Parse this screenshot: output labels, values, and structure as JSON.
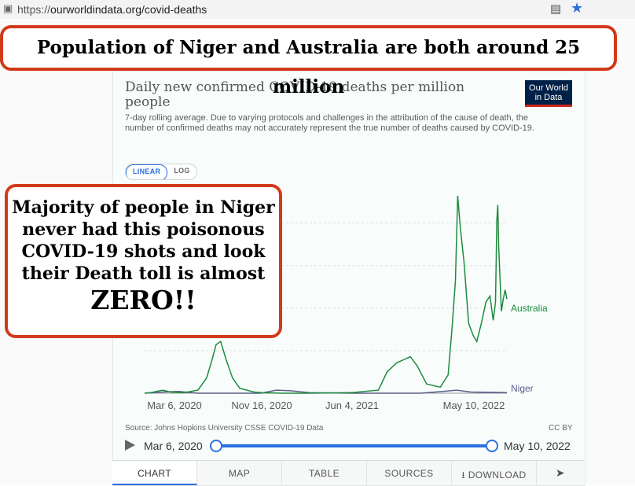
{
  "browser": {
    "url_scheme": "https://",
    "url_path": "ourworldindata.org/covid-deaths",
    "reader_icon": "reader-view-icon",
    "star_icon": "bookmark-star-icon"
  },
  "chart_header": {
    "title": "Daily new confirmed COVID-19 deaths per million people",
    "subtitle": "7-day rolling average. Due to varying protocols and challenges in the attribution of the cause of death, the number of confirmed deaths may not accurately represent the true number of deaths caused by COVID-19.",
    "logo_line1": "Our World",
    "logo_line2": "in Data"
  },
  "scale_toggle": {
    "linear": "LINEAR",
    "log": "LOG",
    "active": "LINEAR"
  },
  "chart_data": {
    "type": "line",
    "title": "Daily new confirmed COVID-19 deaths per million people",
    "x_tick_labels": [
      "Mar 6, 2020",
      "Nov 16, 2020",
      "Jun 4, 2021",
      "May 10, 2022"
    ],
    "x_range": [
      "2020-03-06",
      "2022-05-10"
    ],
    "grid": true,
    "y_scale": "linear",
    "series": [
      {
        "name": "Australia",
        "color": "#1e8a3e",
        "x": [
          "2020-03-06",
          "2020-03-20",
          "2020-04-01",
          "2020-04-15",
          "2020-05-01",
          "2020-06-01",
          "2020-07-01",
          "2020-07-20",
          "2020-08-01",
          "2020-08-10",
          "2020-08-20",
          "2020-09-01",
          "2020-09-15",
          "2020-10-01",
          "2020-11-01",
          "2020-11-16",
          "2021-01-01",
          "2021-03-01",
          "2021-06-01",
          "2021-06-04",
          "2021-08-01",
          "2021-08-20",
          "2021-09-10",
          "2021-09-25",
          "2021-10-10",
          "2021-10-25",
          "2021-11-15",
          "2021-12-15",
          "2022-01-01",
          "2022-01-10",
          "2022-01-17",
          "2022-01-22",
          "2022-01-28",
          "2022-02-05",
          "2022-02-15",
          "2022-02-25",
          "2022-03-05",
          "2022-03-15",
          "2022-03-25",
          "2022-04-03",
          "2022-04-10",
          "2022-04-15",
          "2022-04-18",
          "2022-04-20",
          "2022-04-22",
          "2022-04-28",
          "2022-05-02",
          "2022-05-06",
          "2022-05-10"
        ],
        "values": [
          0.0,
          0.01,
          0.03,
          0.05,
          0.02,
          0.01,
          0.05,
          0.25,
          0.55,
          0.8,
          0.85,
          0.55,
          0.25,
          0.08,
          0.02,
          0.01,
          0.0,
          0.0,
          0.01,
          0.01,
          0.05,
          0.35,
          0.5,
          0.55,
          0.6,
          0.45,
          0.15,
          0.1,
          0.3,
          1.1,
          1.85,
          3.25,
          2.7,
          2.15,
          1.15,
          0.95,
          0.85,
          1.15,
          1.5,
          1.6,
          1.2,
          1.5,
          2.85,
          3.1,
          2.4,
          1.35,
          1.55,
          1.7,
          1.55
        ]
      },
      {
        "name": "Niger",
        "color": "#5a5f8c",
        "x": [
          "2020-03-06",
          "2020-04-15",
          "2020-05-20",
          "2020-07-01",
          "2020-11-16",
          "2020-12-20",
          "2021-01-20",
          "2021-03-01",
          "2021-06-04",
          "2021-11-01",
          "2021-12-20",
          "2022-01-20",
          "2022-02-20",
          "2022-05-10"
        ],
        "values": [
          0.0,
          0.02,
          0.03,
          0.0,
          0.0,
          0.05,
          0.04,
          0.01,
          0.0,
          0.0,
          0.03,
          0.05,
          0.02,
          0.01
        ]
      }
    ]
  },
  "series_labels": {
    "australia": "Australia",
    "niger": "Niger"
  },
  "x_ticks": {
    "t1": "Mar 6, 2020",
    "t2": "Nov 16, 2020",
    "t3": "Jun 4, 2021",
    "t4": "May 10, 2022"
  },
  "footer": {
    "source": "Source: Johns Hopkins University CSSE COVID-19 Data",
    "license": "CC BY",
    "start_date": "Mar 6, 2020",
    "end_date": "May 10, 2022",
    "range_selected_fraction": [
      0.0,
      1.0
    ]
  },
  "tabs": [
    {
      "label": "CHART",
      "active": true
    },
    {
      "label": "MAP"
    },
    {
      "label": "TABLE"
    },
    {
      "label": "SOURCES"
    },
    {
      "label": "⭳ DOWNLOAD"
    }
  ],
  "share_icon": "share-icon",
  "overlays": {
    "top": "Population of Niger and Australia are both around 25 million",
    "left_line1": "Majority of people in Niger",
    "left_line2": "never had this poisonous",
    "left_line3": "COVID-19 shots and look",
    "left_line4": "their Death toll is almost",
    "left_big": "ZERO!!"
  }
}
